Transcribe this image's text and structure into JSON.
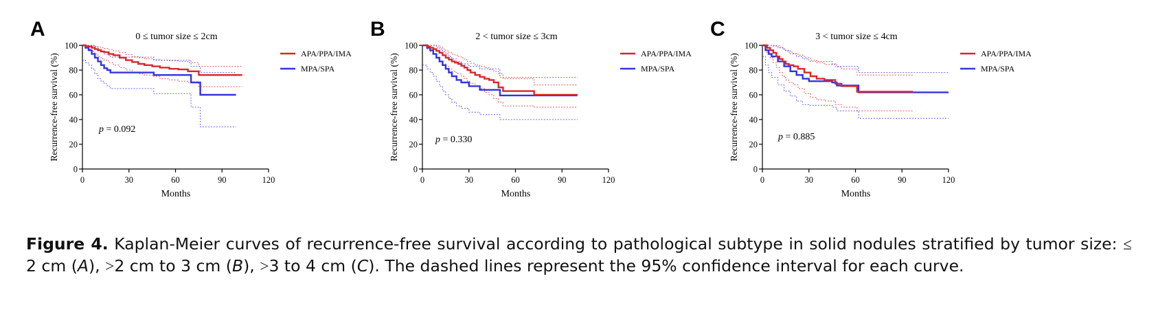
{
  "chart_data": [
    {
      "type": "line",
      "panel_letter": "A",
      "title": "0 ≤ tumor size ≤ 2cm",
      "xlabel": "Months",
      "ylabel": "Recurrence-free survival (%)",
      "xlim": [
        0,
        120
      ],
      "ylim": [
        0,
        100
      ],
      "xticks": [
        "0",
        "30",
        "60",
        "90",
        "120"
      ],
      "yticks": [
        "0",
        "20",
        "40",
        "60",
        "80",
        "100"
      ],
      "annotation": "p = 0.092",
      "legend_position": "top-right",
      "series": [
        {
          "name": "APA/PPA/IMA",
          "color": "#d62728",
          "x": [
            0,
            2,
            4,
            6,
            8,
            10,
            12,
            14,
            17,
            20,
            24,
            28,
            32,
            36,
            40,
            45,
            50,
            56,
            62,
            68,
            75,
            103
          ],
          "y": [
            100,
            99.5,
            99,
            98,
            97,
            96,
            95,
            94.5,
            93,
            92,
            90,
            88,
            86.5,
            85,
            84,
            83,
            82,
            81,
            80.5,
            79,
            76,
            76
          ],
          "ci_lower_y": [
            100,
            98,
            97,
            95,
            93,
            91,
            89,
            88,
            86,
            84,
            82,
            80,
            78,
            77,
            76,
            75,
            73,
            72,
            71,
            70,
            66.5,
            66.5
          ],
          "ci_upper_y": [
            100,
            100,
            100,
            99.5,
            99,
            98.5,
            98,
            97.5,
            96.5,
            95.5,
            94,
            92.5,
            91,
            90,
            89,
            88.5,
            88,
            87.5,
            87,
            86,
            83,
            83
          ]
        },
        {
          "name": "MPA/SPA",
          "color": "#3333dd",
          "x": [
            0,
            2,
            4,
            6,
            8,
            10,
            12,
            14,
            16,
            18,
            46,
            70,
            76,
            99
          ],
          "y": [
            100,
            98,
            96,
            93,
            90,
            87,
            84,
            81.5,
            80,
            78,
            76,
            70,
            60,
            60
          ],
          "ci_lower_y": [
            88,
            86,
            84,
            81,
            77,
            73,
            71,
            69,
            67,
            65,
            61,
            50,
            34,
            34
          ],
          "ci_upper_y": [
            100,
            100,
            100,
            100,
            99,
            97,
            95,
            93,
            92,
            90.5,
            88,
            83,
            78,
            78
          ]
        }
      ]
    },
    {
      "type": "line",
      "panel_letter": "B",
      "title": "2 < tumor size ≤ 3cm",
      "xlabel": "Months",
      "ylabel": "Recurrence-free survival (%)",
      "xlim": [
        0,
        120
      ],
      "ylim": [
        0,
        100
      ],
      "xticks": [
        "0",
        "30",
        "60",
        "90",
        "120"
      ],
      "yticks": [
        "0",
        "20",
        "40",
        "60",
        "80",
        "100"
      ],
      "annotation": "p = 0.330",
      "legend_position": "top-right",
      "series": [
        {
          "name": "APA/PPA/IMA",
          "color": "#d62728",
          "x": [
            0,
            3,
            5,
            7,
            9,
            11,
            13,
            15,
            17,
            19,
            21,
            23,
            25,
            27,
            29,
            31,
            34,
            37,
            40,
            43,
            46,
            49,
            52,
            72,
            100
          ],
          "y": [
            100,
            99,
            98,
            97,
            95.5,
            94,
            92,
            90,
            88.5,
            87,
            86,
            85,
            83.5,
            82,
            80,
            78,
            76,
            74.5,
            73,
            72,
            70,
            66,
            63,
            60,
            60
          ],
          "ci_lower_y": [
            100,
            97,
            95,
            93,
            90,
            87,
            85,
            83,
            81,
            79,
            78,
            77,
            75,
            73,
            71,
            69,
            67,
            65,
            62,
            60,
            57,
            54,
            51,
            50,
            50
          ],
          "ci_upper_y": [
            100,
            100,
            100,
            100,
            99.5,
            98.5,
            97,
            95.5,
            94,
            93,
            92,
            91,
            90,
            88.5,
            87,
            85.5,
            84,
            83,
            82,
            80.5,
            79,
            77,
            73,
            68,
            68
          ]
        },
        {
          "name": "MPA/SPA",
          "color": "#3333dd",
          "x": [
            0,
            3,
            5,
            7,
            9,
            11,
            13,
            15,
            17,
            19,
            22,
            25,
            30,
            37,
            50,
            100
          ],
          "y": [
            100,
            98,
            96,
            93,
            90,
            87,
            84,
            81,
            78,
            75,
            72,
            70,
            67,
            64,
            59.5,
            59.5
          ],
          "ci_lower_y": [
            84,
            81,
            78,
            75,
            71,
            67,
            63,
            60,
            57,
            54,
            51,
            49,
            46,
            44,
            40,
            40
          ],
          "ci_upper_y": [
            100,
            100,
            100,
            100,
            98.5,
            97,
            95,
            93,
            91,
            89,
            87,
            85,
            83,
            81,
            74,
            74
          ]
        }
      ]
    },
    {
      "type": "line",
      "panel_letter": "C",
      "title": "3 < tumor size ≤ 4cm",
      "xlabel": "Months",
      "ylabel": "Recurrence-free survival (%)",
      "xlim": [
        0,
        120
      ],
      "ylim": [
        0,
        100
      ],
      "xticks": [
        "0",
        "30",
        "60",
        "90",
        "120"
      ],
      "yticks": [
        "0",
        "20",
        "40",
        "60",
        "80",
        "100"
      ],
      "annotation": "p = 0.885",
      "legend_position": "top-right",
      "series": [
        {
          "name": "APA/PPA/IMA",
          "color": "#d62728",
          "x": [
            0,
            3,
            5,
            7,
            9,
            11,
            13,
            15,
            17,
            20,
            23,
            27,
            31,
            35,
            40,
            47,
            51,
            61,
            97
          ],
          "y": [
            100,
            98,
            96,
            94,
            91,
            89,
            87,
            85,
            84,
            83,
            81,
            78,
            75,
            73,
            72,
            69,
            67,
            62.5,
            62.5
          ],
          "ci_lower_y": [
            100,
            94,
            90,
            86,
            82,
            78,
            75,
            72,
            70,
            68,
            65,
            61,
            58,
            56,
            55,
            52,
            50,
            47,
            47
          ],
          "ci_upper_y": [
            100,
            100,
            100,
            100,
            99.5,
            98.5,
            97,
            95.5,
            94.5,
            93.5,
            92,
            90,
            88,
            86,
            84.5,
            82.5,
            81,
            76,
            76
          ]
        },
        {
          "name": "MPA/SPA",
          "color": "#3333dd",
          "x": [
            0,
            2,
            4,
            6,
            10,
            14,
            18,
            22,
            26,
            30,
            45,
            48,
            62,
            120
          ],
          "y": [
            100,
            96,
            93,
            91,
            87,
            83,
            79,
            76,
            73,
            71,
            70,
            67.5,
            62,
            62
          ],
          "ci_lower_y": [
            91,
            84,
            78,
            74,
            68,
            63,
            59,
            55,
            52,
            51.5,
            50,
            47,
            41,
            41
          ],
          "ci_upper_y": [
            100,
            100,
            100,
            99.5,
            98,
            96,
            93,
            91,
            89,
            87,
            85,
            83,
            78,
            78
          ]
        }
      ]
    }
  ],
  "caption": {
    "label": "Figure 4.",
    "text_1": " Kaplan-Meier curves of recurrence-free survival according to pathological subtype in solid nodules stratified by tumor size: ",
    "sym_1": "≤",
    "text_2": " 2 cm (",
    "ital_a": "A",
    "text_3": "), ",
    "sym_2": ">",
    "text_4": "2 cm to 3 cm (",
    "ital_b": "B",
    "text_5": "), ",
    "sym_3": ">",
    "text_6": "3 to 4 cm (",
    "ital_c": "C",
    "text_7": "). The dashed lines represent the 95% confidence interval for each curve."
  }
}
